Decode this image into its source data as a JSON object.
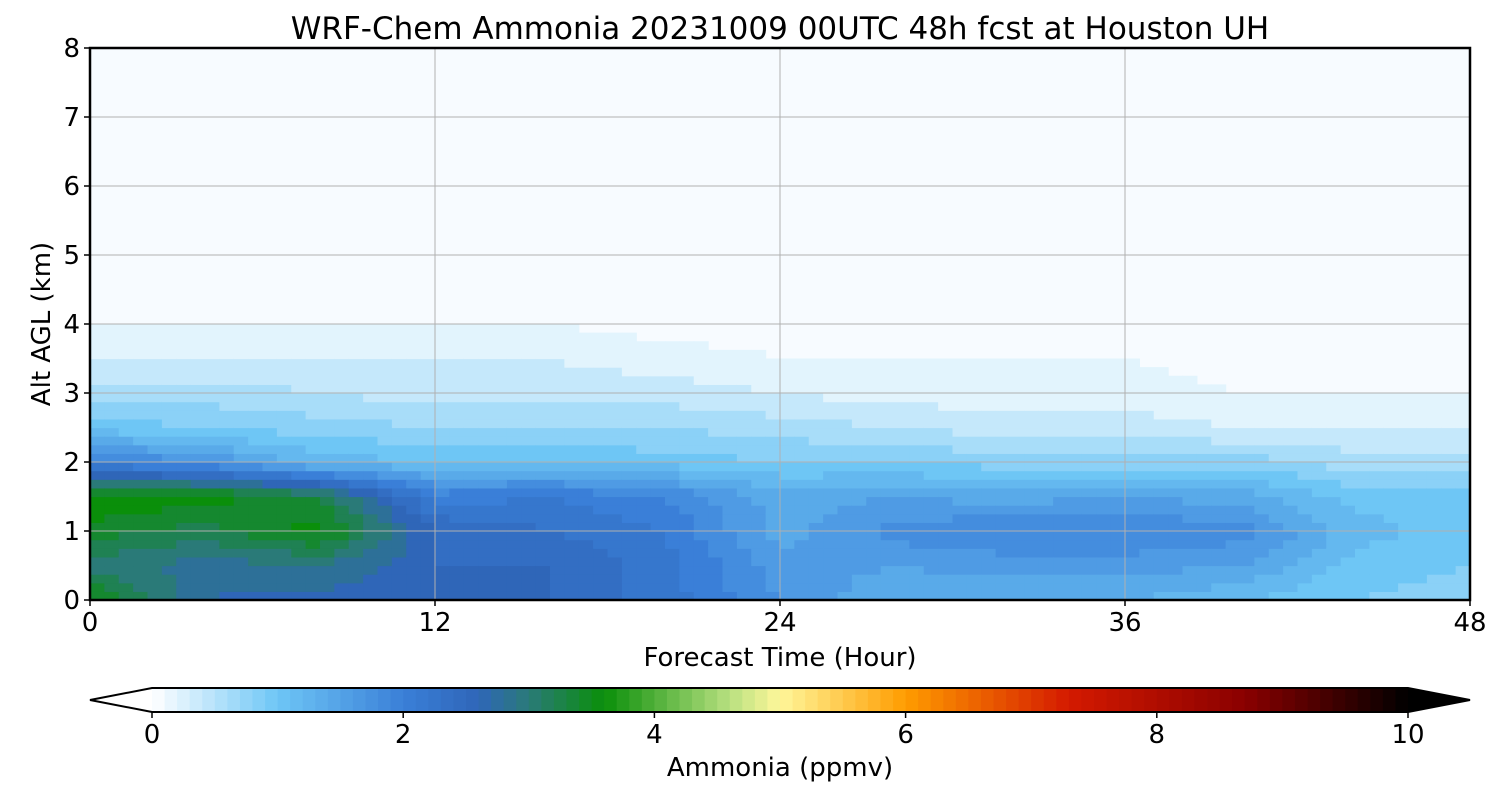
{
  "chart_data": {
    "type": "heatmap",
    "title": "WRF-Chem Ammonia  20231009 00UTC 48h fcst at Houston UH",
    "xlabel": "Forecast Time (Hour)",
    "ylabel": "Alt AGL (km)",
    "xlim": [
      0,
      48
    ],
    "ylim": [
      0,
      8
    ],
    "x_ticks": [
      0,
      12,
      24,
      36,
      48
    ],
    "y_ticks": [
      0,
      1,
      2,
      3,
      4,
      5,
      6,
      7,
      8
    ],
    "grid": true,
    "x": [
      0,
      4,
      8,
      12,
      16,
      20,
      24,
      28,
      32,
      36,
      40,
      44,
      48
    ],
    "y": [
      0,
      0.5,
      1,
      1.5,
      2,
      2.5,
      3,
      3.5,
      4,
      8
    ],
    "z": [
      [
        3.6,
        2.7,
        2.6,
        2.6,
        2.5,
        2.2,
        1.7,
        1.3,
        1.3,
        1.3,
        1.1,
        0.9,
        0.8
      ],
      [
        3.0,
        2.8,
        2.9,
        2.5,
        2.5,
        2.2,
        1.6,
        1.5,
        1.6,
        1.6,
        1.5,
        1.0,
        0.9
      ],
      [
        3.4,
        3.2,
        3.6,
        2.5,
        2.3,
        2.1,
        1.4,
        1.8,
        1.9,
        1.9,
        1.8,
        1.2,
        1.0
      ],
      [
        3.7,
        3.6,
        3.3,
        2.0,
        2.1,
        1.9,
        1.4,
        1.5,
        1.4,
        1.5,
        1.4,
        1.0,
        1.0
      ],
      [
        2.0,
        1.7,
        1.2,
        1.1,
        1.1,
        1.0,
        0.9,
        0.9,
        0.8,
        0.8,
        0.8,
        0.6,
        0.6
      ],
      [
        1.0,
        0.9,
        0.8,
        0.7,
        0.7,
        0.7,
        0.6,
        0.5,
        0.4,
        0.4,
        0.3,
        0.3,
        0.3
      ],
      [
        0.6,
        0.6,
        0.5,
        0.4,
        0.4,
        0.4,
        0.3,
        0.2,
        0.2,
        0.2,
        0.1,
        0.1,
        0.1
      ],
      [
        0.3,
        0.3,
        0.3,
        0.3,
        0.3,
        0.2,
        0.1,
        0.1,
        0.1,
        0.1,
        0.0,
        0.0,
        0.0
      ],
      [
        0.1,
        0.1,
        0.1,
        0.1,
        0.1,
        0.0,
        0.0,
        0.0,
        0.0,
        0.0,
        0.0,
        0.0,
        0.0
      ],
      [
        0.0,
        0.0,
        0.0,
        0.0,
        0.0,
        0.0,
        0.0,
        0.0,
        0.0,
        0.0,
        0.0,
        0.0,
        0.0
      ]
    ],
    "colorbar": {
      "label": "Ammonia  (ppmv)",
      "min": 0,
      "max": 10,
      "ticks": [
        0,
        2,
        4,
        6,
        8,
        10
      ],
      "extend": "both",
      "orientation": "horizontal",
      "position": "bottom",
      "stops": [
        {
          "v": 0,
          "c": "#ffffff"
        },
        {
          "v": 1,
          "c": "#6ec6f5"
        },
        {
          "v": 2,
          "c": "#3a7fd8"
        },
        {
          "v": 2.6,
          "c": "#2f66b8"
        },
        {
          "v": 3.0,
          "c": "#2a7a78"
        },
        {
          "v": 3.6,
          "c": "#0a8f0a"
        },
        {
          "v": 4.6,
          "c": "#b8e080"
        },
        {
          "v": 5.0,
          "c": "#fff79a"
        },
        {
          "v": 6.0,
          "c": "#ff9c00"
        },
        {
          "v": 7.3,
          "c": "#d41a00"
        },
        {
          "v": 8.7,
          "c": "#8a0000"
        },
        {
          "v": 10,
          "c": "#000000"
        }
      ],
      "under_color": "#ffffff",
      "over_color": "#000000"
    }
  }
}
